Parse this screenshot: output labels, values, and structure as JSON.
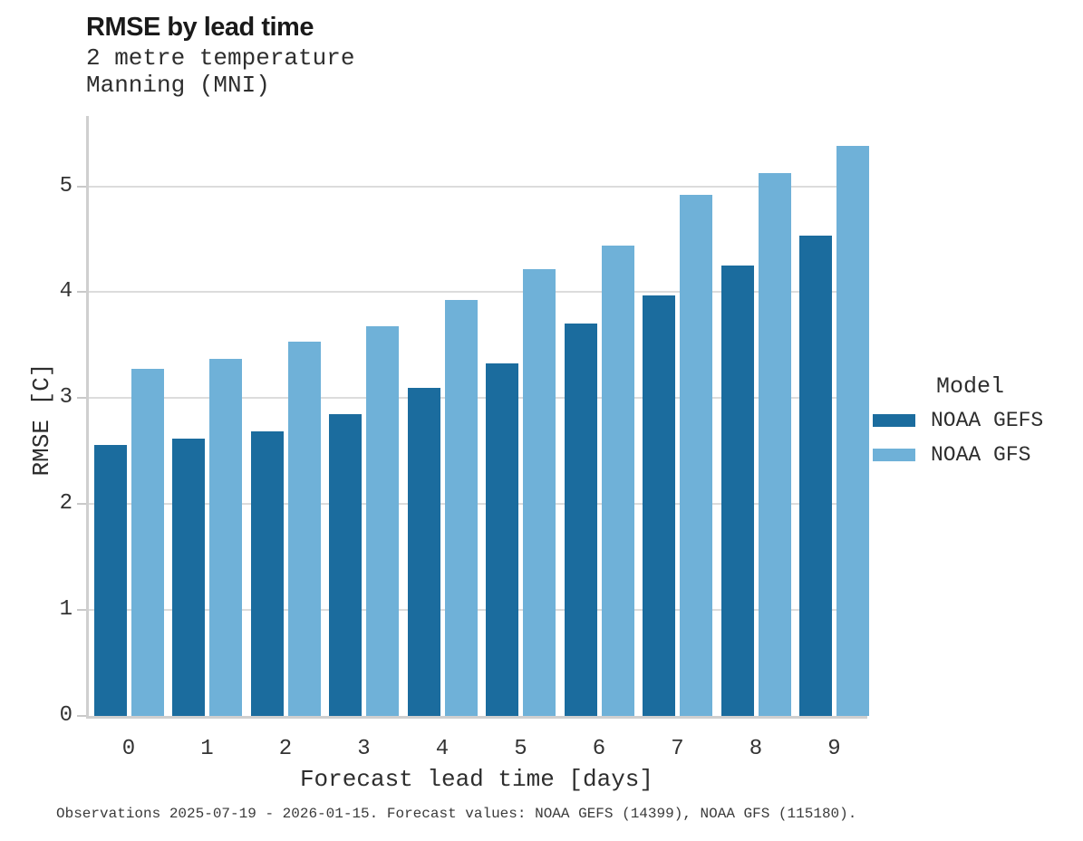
{
  "title": "RMSE by lead time",
  "subtitle_line1": "2 metre temperature",
  "subtitle_line2": "Manning (MNI)",
  "footer": "Observations 2025-07-19 - 2026-01-15. Forecast values: NOAA GEFS (14399), NOAA GFS (115180).",
  "legend": {
    "title": "Model",
    "entries": [
      {
        "label": "NOAA GEFS",
        "color": "#1b6c9e"
      },
      {
        "label": "NOAA GFS",
        "color": "#6fb1d8"
      }
    ]
  },
  "colors": {
    "gefs_bar": "#1b6c9e",
    "gfs_bar": "#6fb1d8",
    "gridline": "#dcdcdc",
    "spine": "#cfcfcf"
  },
  "chart_data": {
    "type": "bar",
    "title": "RMSE by lead time",
    "subtitle": "2 metre temperature, Manning (MNI)",
    "categories": [
      "0",
      "1",
      "2",
      "3",
      "4",
      "5",
      "6",
      "7",
      "8",
      "9"
    ],
    "series": [
      {
        "name": "NOAA GEFS",
        "color": "#1b6c9e",
        "values": [
          2.56,
          2.62,
          2.69,
          2.85,
          3.1,
          3.33,
          3.7,
          3.97,
          4.25,
          4.53
        ]
      },
      {
        "name": "NOAA GFS",
        "color": "#6fb1d8",
        "values": [
          3.28,
          3.37,
          3.53,
          3.68,
          3.93,
          4.22,
          4.44,
          4.92,
          5.12,
          5.38
        ]
      }
    ],
    "xlabel": "Forecast lead time [days]",
    "ylabel": "RMSE [C]",
    "ylim": [
      0,
      5.7
    ],
    "yticks": [
      0,
      1,
      2,
      3,
      4,
      5
    ],
    "grid": true,
    "legend_title": "Model",
    "legend_position": "right"
  }
}
